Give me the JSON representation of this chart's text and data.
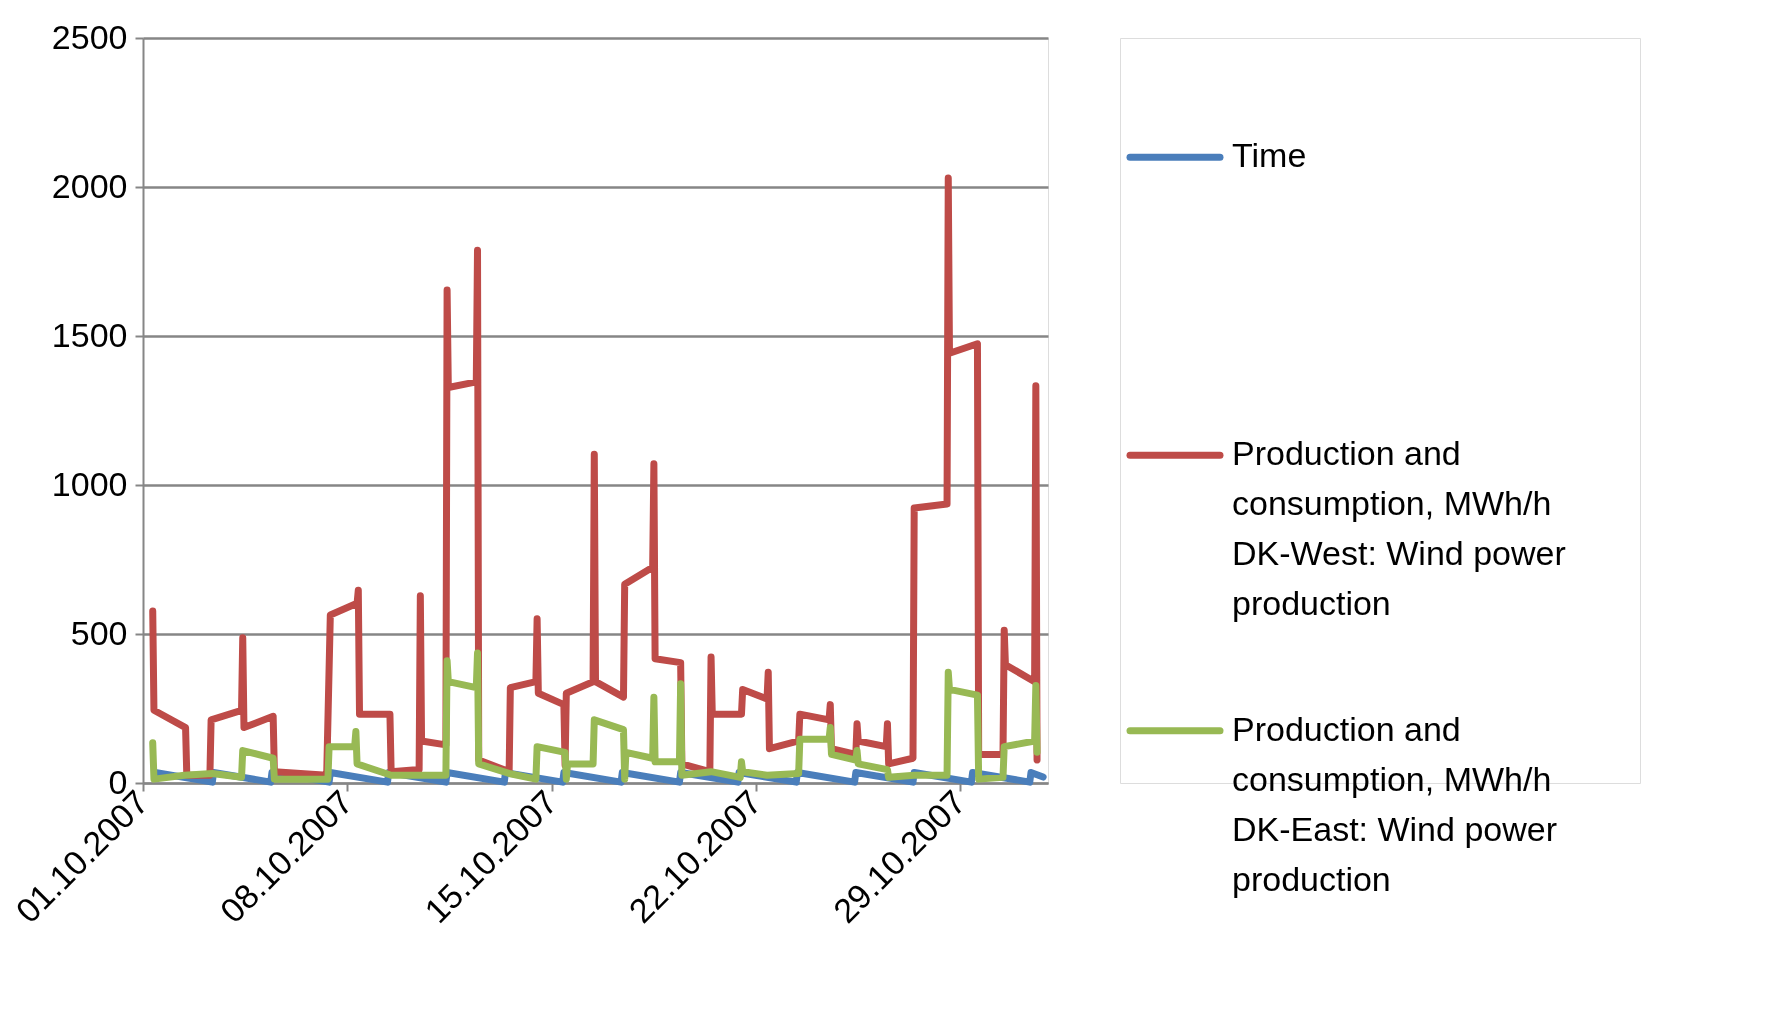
{
  "chart_data": {
    "type": "line",
    "grid": "y",
    "legend": "right",
    "line_style": "solid",
    "marker": "none",
    "xlim": [
      "2007-10-01",
      "2007-11-01"
    ],
    "xticks": [
      {
        "value": "2007-10-01",
        "label": "01.10.2007"
      },
      {
        "value": "2007-10-08",
        "label": "08.10.2007"
      },
      {
        "value": "2007-10-15",
        "label": "15.10.2007"
      },
      {
        "value": "2007-10-22",
        "label": "22.10.2007"
      },
      {
        "value": "2007-10-29",
        "label": "29.10.2007"
      }
    ],
    "ylim": [
      0,
      2500
    ],
    "yticks": [
      0,
      500,
      1000,
      1500,
      2000,
      2500
    ],
    "series": [
      {
        "name": "Time",
        "color": "#4a7ebb",
        "x": [
          "2007-10-01T10:00",
          "2007-10-03T09:00",
          "2007-10-03T10:00",
          "2007-10-05T09:00",
          "2007-10-05T10:00",
          "2007-10-07T09:00",
          "2007-10-07T10:00",
          "2007-10-09T09:00",
          "2007-10-09T10:00",
          "2007-10-11T09:00",
          "2007-10-11T10:00",
          "2007-10-13T09:00",
          "2007-10-13T10:00",
          "2007-10-15T09:00",
          "2007-10-15T10:00",
          "2007-10-17T09:00",
          "2007-10-17T10:00",
          "2007-10-19T09:00",
          "2007-10-19T10:00",
          "2007-10-21T09:00",
          "2007-10-21T10:00",
          "2007-10-23T09:00",
          "2007-10-23T10:00",
          "2007-10-25T09:00",
          "2007-10-25T10:00",
          "2007-10-27T09:00",
          "2007-10-27T10:00",
          "2007-10-29T09:00",
          "2007-10-29T10:00",
          "2007-10-31T09:00",
          "2007-10-31T10:00",
          "2007-10-31T20:00"
        ],
        "values": [
          35,
          3,
          35,
          3,
          35,
          3,
          35,
          3,
          35,
          3,
          35,
          3,
          35,
          3,
          35,
          3,
          35,
          3,
          35,
          3,
          35,
          3,
          35,
          3,
          35,
          3,
          35,
          3,
          35,
          3,
          35,
          20
        ]
      },
      {
        "name": "Production and consumption, MWh/h DK-West: Wind power production",
        "color": "#be4b48",
        "x": [
          "2007-10-01T08:00",
          "2007-10-01T09:00",
          "2007-10-02T11:00",
          "2007-10-02T12:00",
          "2007-10-03T07:00",
          "2007-10-03T08:00",
          "2007-10-04T09:00",
          "2007-10-04T10:00",
          "2007-10-04T11:00",
          "2007-10-05T11:00",
          "2007-10-05T12:00",
          "2007-10-07T07:00",
          "2007-10-07T10:00",
          "2007-10-08T08:00",
          "2007-10-08T09:00",
          "2007-10-08T10:00",
          "2007-10-09T11:00",
          "2007-10-09T12:00",
          "2007-10-10T11:00",
          "2007-10-10T12:00",
          "2007-10-10T13:00",
          "2007-10-11T09:00",
          "2007-10-11T10:00",
          "2007-10-11T11:00",
          "2007-10-12T10:00",
          "2007-10-12T11:00",
          "2007-10-12T12:00",
          "2007-10-13T13:00",
          "2007-10-13T14:00",
          "2007-10-14T11:00",
          "2007-10-14T12:00",
          "2007-10-14T13:00",
          "2007-10-15T10:00",
          "2007-10-15T11:00",
          "2007-10-15T12:00",
          "2007-10-16T10:00",
          "2007-10-16T11:00",
          "2007-10-16T12:00",
          "2007-10-17T11:00",
          "2007-10-17T12:00",
          "2007-10-18T11:00",
          "2007-10-18T12:00",
          "2007-10-18T13:00",
          "2007-10-19T10:00",
          "2007-10-19T11:00",
          "2007-10-20T10:00",
          "2007-10-20T11:00",
          "2007-10-20T12:00",
          "2007-10-21T12:00",
          "2007-10-21T13:00",
          "2007-10-22T09:00",
          "2007-10-22T10:00",
          "2007-10-22T11:00",
          "2007-10-23T11:00",
          "2007-10-23T12:00",
          "2007-10-24T12:00",
          "2007-10-24T13:00",
          "2007-10-24T14:00",
          "2007-10-25T10:00",
          "2007-10-25T11:00",
          "2007-10-25T12:00",
          "2007-10-26T11:00",
          "2007-10-26T12:00",
          "2007-10-26T13:00",
          "2007-10-27T09:00",
          "2007-10-27T10:00",
          "2007-10-28T13:00",
          "2007-10-28T14:00",
          "2007-10-28T15:00",
          "2007-10-29T14:00",
          "2007-10-29T15:00",
          "2007-10-30T11:00",
          "2007-10-30T12:00",
          "2007-10-30T13:00",
          "2007-10-31T13:00",
          "2007-10-31T14:00",
          "2007-10-31T15:00"
        ],
        "values": [
          577,
          244,
          186,
          26,
          26,
          212,
          244,
          487,
          186,
          224,
          38,
          26,
          564,
          603,
          647,
          231,
          231,
          38,
          45,
          628,
          141,
          128,
          1654,
          1327,
          1346,
          1788,
          77,
          38,
          320,
          340,
          551,
          301,
          263,
          60,
          301,
          340,
          1103,
          340,
          288,
          667,
          724,
          1071,
          417,
          404,
          64,
          38,
          423,
          231,
          231,
          314,
          282,
          372,
          115,
          141,
          231,
          212,
          263,
          115,
          96,
          199,
          141,
          122,
          199,
          64,
          83,
          923,
          936,
          2030,
          1442,
          1474,
          96,
          96,
          513,
          397,
          340,
          1333,
          77
        ]
      },
      {
        "name": "Production and consumption, MWh/h DK-East: Wind power production",
        "color": "#98b954",
        "x": [
          "2007-10-01T08:00",
          "2007-10-01T09:00",
          "2007-10-02T10:00",
          "2007-10-03T09:00",
          "2007-10-04T09:00",
          "2007-10-04T10:00",
          "2007-10-05T11:00",
          "2007-10-05T12:00",
          "2007-10-07T08:00",
          "2007-10-07T09:00",
          "2007-10-08T06:00",
          "2007-10-08T07:00",
          "2007-10-08T08:00",
          "2007-10-09T12:00",
          "2007-10-10T11:00",
          "2007-10-11T09:00",
          "2007-10-11T10:00",
          "2007-10-11T11:00",
          "2007-10-12T10:00",
          "2007-10-12T11:00",
          "2007-10-12T12:00",
          "2007-10-13T13:00",
          "2007-10-14T11:00",
          "2007-10-14T12:00",
          "2007-10-15T11:00",
          "2007-10-15T12:00",
          "2007-10-15T13:00",
          "2007-10-16T10:00",
          "2007-10-16T11:00",
          "2007-10-17T11:00",
          "2007-10-17T12:00",
          "2007-10-17T13:00",
          "2007-10-18T11:00",
          "2007-10-18T12:00",
          "2007-10-18T13:00",
          "2007-10-19T09:00",
          "2007-10-19T10:00",
          "2007-10-19T11:00",
          "2007-10-20T11:00",
          "2007-10-21T11:00",
          "2007-10-21T12:00",
          "2007-10-21T13:00",
          "2007-10-22T09:00",
          "2007-10-23T11:00",
          "2007-10-23T12:00",
          "2007-10-24T12:00",
          "2007-10-24T13:00",
          "2007-10-24T14:00",
          "2007-10-25T10:00",
          "2007-10-25T11:00",
          "2007-10-25T12:00",
          "2007-10-26T12:00",
          "2007-10-26T13:00",
          "2007-10-27T10:00",
          "2007-10-28T13:00",
          "2007-10-28T14:00",
          "2007-10-28T15:00",
          "2007-10-29T14:00",
          "2007-10-29T15:00",
          "2007-10-30T11:00",
          "2007-10-30T12:00",
          "2007-10-31T13:00",
          "2007-10-31T14:00",
          "2007-10-31T15:00"
        ],
        "values": [
          135,
          13,
          26,
          32,
          19,
          109,
          83,
          13,
          13,
          122,
          122,
          173,
          64,
          26,
          26,
          26,
          410,
          340,
          320,
          436,
          64,
          32,
          13,
          122,
          103,
          13,
          64,
          64,
          212,
          179,
          13,
          103,
          83,
          288,
          71,
          71,
          333,
          26,
          38,
          19,
          71,
          38,
          26,
          32,
          147,
          147,
          186,
          96,
          77,
          109,
          64,
          45,
          19,
          26,
          26,
          372,
          314,
          295,
          13,
          19,
          122,
          141,
          327,
          103
        ]
      }
    ]
  }
}
